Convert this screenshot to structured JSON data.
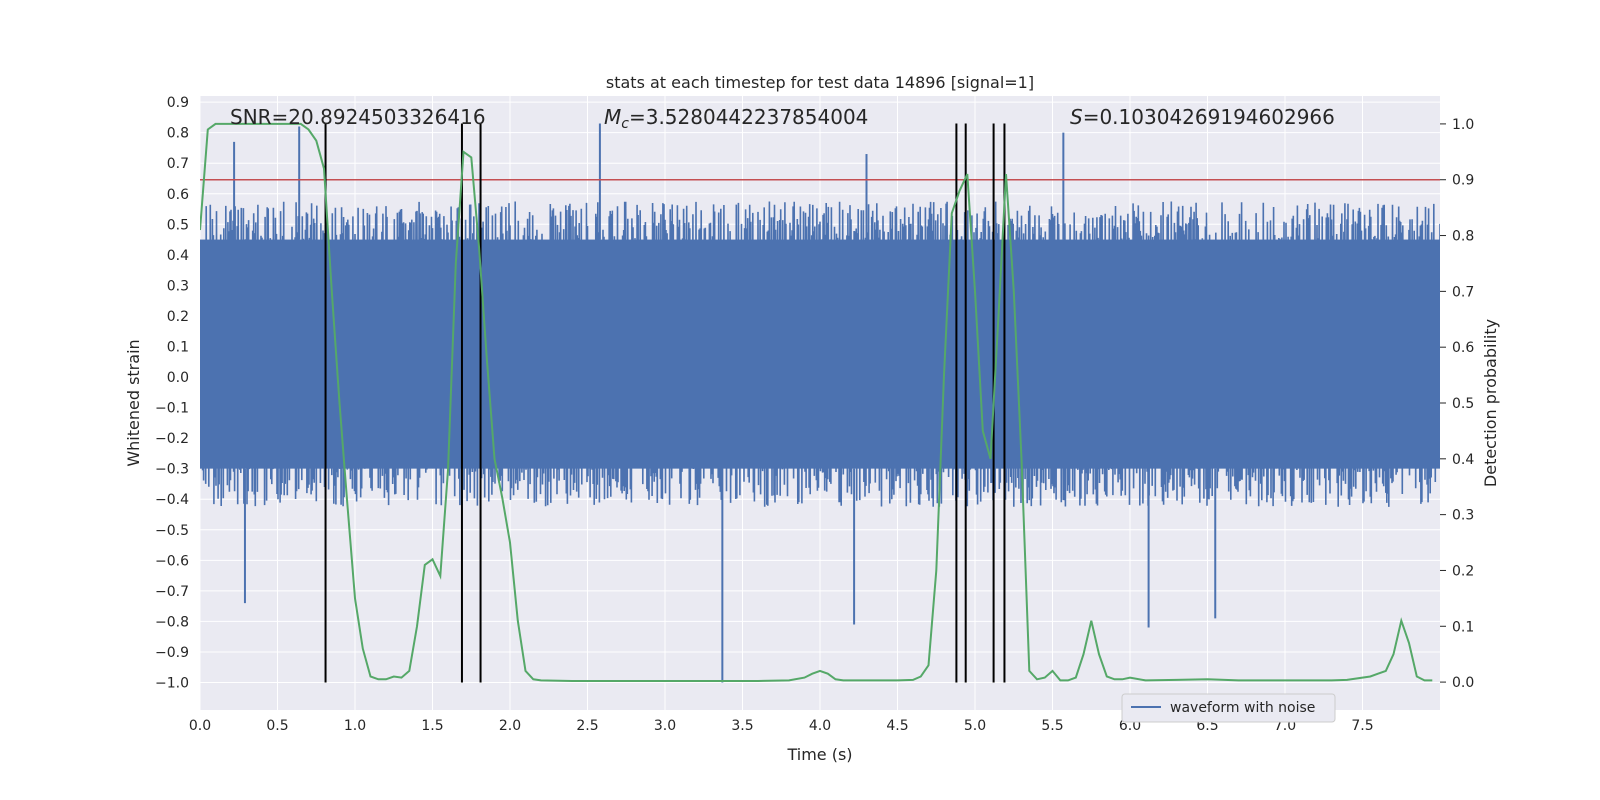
{
  "chart_data": {
    "type": "line",
    "title": "stats at each timestep for test data 14896 [signal=1]",
    "xlabel": "Time (s)",
    "ylabel": "Whitened strain",
    "ylabel_right": "Detection probability",
    "xlim": [
      0.0,
      8.0
    ],
    "ylim": [
      -1.09,
      0.92
    ],
    "ylim_right": [
      -0.05,
      1.05
    ],
    "x_ticks": [
      "0.0",
      "0.5",
      "1.0",
      "1.5",
      "2.0",
      "2.5",
      "3.0",
      "3.5",
      "4.0",
      "4.5",
      "5.0",
      "5.5",
      "6.0",
      "6.5",
      "7.0",
      "7.5"
    ],
    "y_ticks": [
      "0.9",
      "0.8",
      "0.7",
      "0.6",
      "0.5",
      "0.4",
      "0.3",
      "0.2",
      "0.1",
      "0.0",
      "−0.1",
      "−0.2",
      "−0.3",
      "−0.4",
      "−0.5",
      "−0.6",
      "−0.7",
      "−0.8",
      "−0.9",
      "−1.0"
    ],
    "y_right_ticks": [
      "0.0",
      "0.1",
      "0.2",
      "0.3",
      "0.4",
      "0.5",
      "0.6",
      "0.7",
      "0.8",
      "0.9",
      "1.0"
    ],
    "grid": true,
    "legend_position": "lower-right",
    "annotations": {
      "snr": "SNR=20.8924503326416",
      "mc": "M_c=3.5280442237854004",
      "mc_symbol": "M",
      "mc_sub": "c",
      "mc_value": "=3.5280442237854004",
      "s": "S=0.10304269194602966",
      "s_symbol": "S",
      "s_value": "=0.10304269194602966"
    },
    "series": [
      {
        "name": "waveform with noise",
        "axis": "left",
        "color": "#4c72b0",
        "kind": "noise-waveform",
        "typical_range": [
          -0.3,
          0.45
        ],
        "peak_extremes": [
          {
            "x": 0.22,
            "y": 0.77
          },
          {
            "x": 0.64,
            "y": 0.82
          },
          {
            "x": 2.58,
            "y": 0.83
          },
          {
            "x": 4.3,
            "y": 0.73
          },
          {
            "x": 5.57,
            "y": 0.8
          },
          {
            "x": 0.29,
            "y": -0.74
          },
          {
            "x": 3.37,
            "y": -1.0
          },
          {
            "x": 4.22,
            "y": -0.81
          },
          {
            "x": 6.12,
            "y": -0.82
          },
          {
            "x": 6.55,
            "y": -0.79
          }
        ]
      },
      {
        "name": "detection probability",
        "axis": "right",
        "color": "#55a868",
        "x": [
          0.0,
          0.05,
          0.1,
          0.15,
          0.2,
          0.3,
          0.4,
          0.5,
          0.6,
          0.65,
          0.7,
          0.75,
          0.8,
          0.85,
          0.9,
          0.95,
          1.0,
          1.05,
          1.1,
          1.15,
          1.2,
          1.25,
          1.3,
          1.35,
          1.4,
          1.45,
          1.5,
          1.55,
          1.6,
          1.65,
          1.7,
          1.75,
          1.8,
          1.85,
          1.9,
          1.95,
          2.0,
          2.05,
          2.1,
          2.15,
          2.2,
          2.4,
          2.6,
          2.8,
          3.0,
          3.2,
          3.4,
          3.6,
          3.8,
          3.9,
          3.95,
          4.0,
          4.05,
          4.1,
          4.15,
          4.2,
          4.3,
          4.4,
          4.5,
          4.6,
          4.65,
          4.7,
          4.75,
          4.8,
          4.85,
          4.9,
          4.95,
          5.0,
          5.05,
          5.1,
          5.15,
          5.2,
          5.25,
          5.3,
          5.35,
          5.4,
          5.45,
          5.5,
          5.55,
          5.6,
          5.65,
          5.7,
          5.75,
          5.8,
          5.85,
          5.9,
          5.95,
          6.0,
          6.1,
          6.3,
          6.5,
          6.7,
          6.9,
          7.1,
          7.3,
          7.4,
          7.5,
          7.55,
          7.6,
          7.65,
          7.7,
          7.75,
          7.8,
          7.85,
          7.9,
          7.95
        ],
        "values": [
          0.81,
          0.99,
          1.0,
          1.0,
          1.0,
          1.0,
          1.0,
          1.0,
          1.0,
          1.0,
          0.99,
          0.97,
          0.92,
          0.7,
          0.5,
          0.32,
          0.15,
          0.06,
          0.01,
          0.005,
          0.005,
          0.01,
          0.008,
          0.02,
          0.1,
          0.21,
          0.22,
          0.19,
          0.38,
          0.75,
          0.95,
          0.94,
          0.78,
          0.58,
          0.4,
          0.33,
          0.25,
          0.11,
          0.02,
          0.005,
          0.003,
          0.002,
          0.002,
          0.002,
          0.002,
          0.002,
          0.002,
          0.002,
          0.003,
          0.008,
          0.015,
          0.02,
          0.015,
          0.005,
          0.003,
          0.003,
          0.003,
          0.003,
          0.003,
          0.004,
          0.01,
          0.03,
          0.2,
          0.55,
          0.84,
          0.88,
          0.91,
          0.7,
          0.45,
          0.4,
          0.65,
          0.91,
          0.7,
          0.4,
          0.02,
          0.005,
          0.008,
          0.02,
          0.003,
          0.003,
          0.008,
          0.05,
          0.11,
          0.05,
          0.01,
          0.005,
          0.005,
          0.008,
          0.003,
          0.004,
          0.005,
          0.003,
          0.003,
          0.003,
          0.003,
          0.004,
          0.008,
          0.01,
          0.015,
          0.02,
          0.05,
          0.11,
          0.07,
          0.01,
          0.003,
          0.003
        ],
        "show_in_legend": false
      },
      {
        "name": "threshold",
        "axis": "right",
        "color": "#c44e52",
        "value": 0.9,
        "show_in_legend": false
      }
    ],
    "event_lines_x": [
      0.81,
      1.69,
      1.81,
      4.88,
      4.94,
      5.12,
      5.19
    ],
    "event_lines_y_range": [
      -1.0,
      0.83
    ],
    "colors": {
      "plot_background": "#eaeaf2",
      "grid": "#ffffff",
      "waveform": "#4c72b0",
      "probability": "#55a868",
      "threshold": "#c44e52",
      "event_lines": "#000000"
    }
  }
}
